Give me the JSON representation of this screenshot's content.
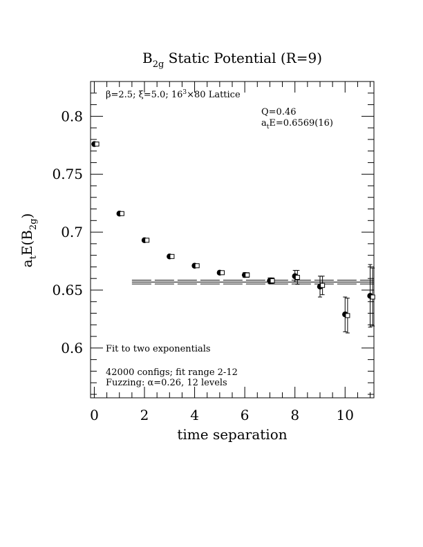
{
  "chart_data": {
    "type": "scatter",
    "title": {
      "main": "B",
      "sub": "2g",
      "rest": " Static Potential (R=9)"
    },
    "xlabel": "time separation",
    "ylabel": {
      "pre": "a",
      "pre_sub": "t",
      "mid": "E(B",
      "mid_sub": "2g",
      "post": ")"
    },
    "xlim": [
      -0.15,
      11.15
    ],
    "ylim": [
      0.557,
      0.83
    ],
    "xticks": [
      {
        "value": 0,
        "label": "0"
      },
      {
        "value": 2,
        "label": "2"
      },
      {
        "value": 4,
        "label": "4"
      },
      {
        "value": 6,
        "label": "6"
      },
      {
        "value": 8,
        "label": "8"
      },
      {
        "value": 10,
        "label": "10"
      }
    ],
    "yticks": [
      {
        "value": 0.6,
        "label": "0.6"
      },
      {
        "value": 0.65,
        "label": "0.65"
      },
      {
        "value": 0.7,
        "label": "0.7"
      },
      {
        "value": 0.75,
        "label": "0.75"
      },
      {
        "value": 0.8,
        "label": "0.8"
      }
    ],
    "lattice_label": {
      "beta": "β=2.5; ξ=5.0; 16",
      "sup": "3",
      "rest": "×80 Lattice"
    },
    "fit_stats": {
      "q": "Q=0.46",
      "energy": {
        "pre": "a",
        "sub": "t",
        "rest": "E=0.6569(16)"
      }
    },
    "notes": {
      "fit_type": "Fit to two exponentials",
      "configs": "42000 configs; fit range 2-12",
      "fuzzing": "Fuzzing: α=0.26, 12 levels"
    },
    "fit": {
      "value": 0.6569,
      "error": 0.0016,
      "x_range": [
        1.5,
        11.15
      ]
    },
    "series": [
      {
        "marker": "filled-circle",
        "points": [
          {
            "x": 0,
            "y": 0.776,
            "err": 0.0008
          },
          {
            "x": 1,
            "y": 0.716,
            "err": 0.001
          },
          {
            "x": 2,
            "y": 0.693,
            "err": 0.001
          },
          {
            "x": 3,
            "y": 0.679,
            "err": 0.001
          },
          {
            "x": 4,
            "y": 0.671,
            "err": 0.0012
          },
          {
            "x": 5,
            "y": 0.665,
            "err": 0.0015
          },
          {
            "x": 6,
            "y": 0.663,
            "err": 0.002
          },
          {
            "x": 7,
            "y": 0.658,
            "err": 0.0025
          },
          {
            "x": 8,
            "y": 0.662,
            "err": 0.005
          },
          {
            "x": 9,
            "y": 0.653,
            "err": 0.009
          },
          {
            "x": 10,
            "y": 0.629,
            "err": 0.015
          },
          {
            "x": 11,
            "y": 0.645,
            "err": 0.027
          }
        ]
      },
      {
        "marker": "open-square",
        "points": [
          {
            "x": 0.1,
            "y": 0.776,
            "err": 0.0008
          },
          {
            "x": 1.1,
            "y": 0.716,
            "err": 0.001
          },
          {
            "x": 2.1,
            "y": 0.693,
            "err": 0.001
          },
          {
            "x": 3.1,
            "y": 0.679,
            "err": 0.001
          },
          {
            "x": 4.1,
            "y": 0.671,
            "err": 0.0012
          },
          {
            "x": 5.1,
            "y": 0.665,
            "err": 0.0015
          },
          {
            "x": 6.1,
            "y": 0.663,
            "err": 0.002
          },
          {
            "x": 7.1,
            "y": 0.658,
            "err": 0.0025
          },
          {
            "x": 8.1,
            "y": 0.661,
            "err": 0.006
          },
          {
            "x": 9.1,
            "y": 0.654,
            "err": 0.008
          },
          {
            "x": 10.1,
            "y": 0.628,
            "err": 0.015
          },
          {
            "x": 11.1,
            "y": 0.644,
            "err": 0.025
          }
        ]
      }
    ]
  }
}
